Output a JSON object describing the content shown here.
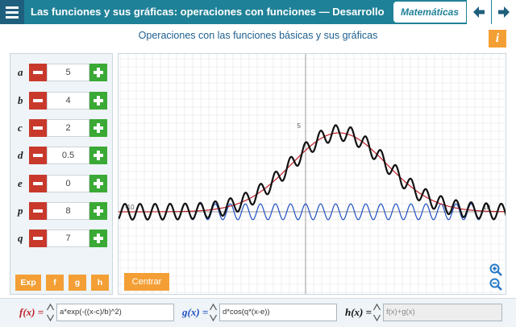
{
  "header": {
    "title": "Las funciones y sus gráficas: operaciones con funciones  —  Desarrollo",
    "subject": "Matemáticas",
    "colors": {
      "bar": "#1f8197",
      "menu": "#1f5f7e"
    }
  },
  "subtitle": "Operaciones con las funciones básicas y sus gráficas",
  "info_label": "i",
  "params": [
    {
      "name": "a",
      "value": "5"
    },
    {
      "name": "b",
      "value": "4"
    },
    {
      "name": "c",
      "value": "2"
    },
    {
      "name": "d",
      "value": "0.5"
    },
    {
      "name": "e",
      "value": "0"
    },
    {
      "name": "p",
      "value": "8"
    },
    {
      "name": "q",
      "value": "7"
    }
  ],
  "panel_buttons": {
    "exp": "Exp",
    "f": "f",
    "g": "g",
    "h": "h"
  },
  "graph": {
    "center_label": "Centrar",
    "axis_labels": {
      "y5": "5",
      "xneg": "-10",
      "xpos": "10"
    },
    "colors": {
      "f": "#c0212b",
      "g": "#1f4fc2",
      "h": "#111111",
      "grid": "#e4e4e4"
    }
  },
  "formulas": {
    "f_label": "f(x) =",
    "f_value": "a*exp(-((x-c)/b)^2)",
    "g_label": "g(x) =",
    "g_value": "d*cos(q*(x-e))",
    "h_label": "h(x) =",
    "h_value": "f(x)+g(x)"
  }
}
